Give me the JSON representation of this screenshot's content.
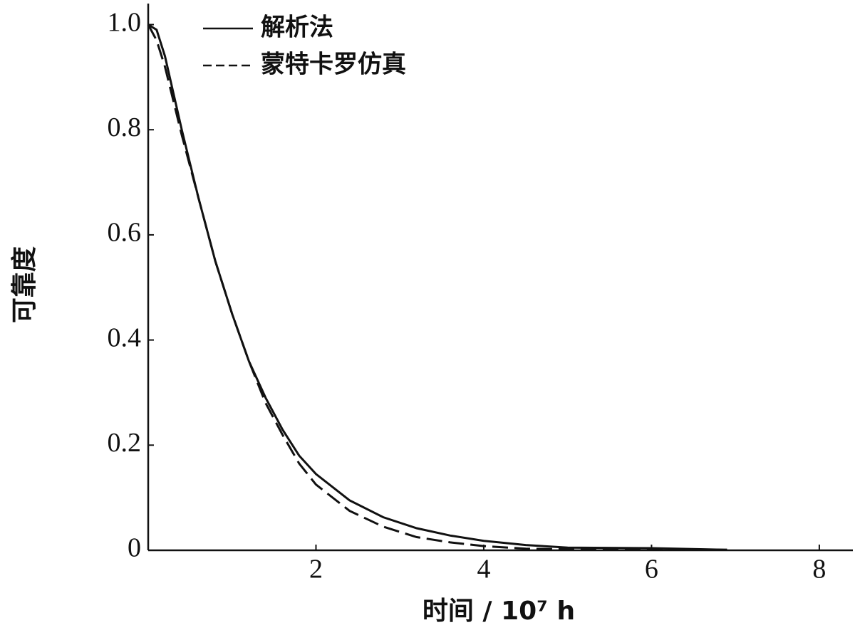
{
  "chart_data": {
    "type": "line",
    "xlabel": "时间 / 10⁷ h",
    "ylabel": "可靠度",
    "x": [
      0,
      0.1,
      0.2,
      0.4,
      0.6,
      0.8,
      1.0,
      1.2,
      1.4,
      1.6,
      1.8,
      2.0,
      2.4,
      2.8,
      3.2,
      3.6,
      4.0,
      4.5,
      5.0,
      6.0,
      6.9
    ],
    "series": [
      {
        "name": "解析法",
        "color": "#111111",
        "dash": false,
        "values": [
          1.0,
          0.99,
          0.94,
          0.8,
          0.67,
          0.55,
          0.45,
          0.36,
          0.29,
          0.23,
          0.18,
          0.145,
          0.095,
          0.063,
          0.042,
          0.028,
          0.018,
          0.01,
          0.005,
          0.004,
          0.001
        ]
      },
      {
        "name": "蒙特卡罗仿真",
        "color": "#111111",
        "dash": true,
        "values": [
          1.0,
          0.97,
          0.92,
          0.79,
          0.67,
          0.55,
          0.45,
          0.36,
          0.28,
          0.22,
          0.165,
          0.125,
          0.075,
          0.045,
          0.025,
          0.015,
          0.008,
          0.003,
          0.002,
          0.002,
          0.001
        ]
      }
    ],
    "xlim": [
      0,
      8.4
    ],
    "ylim": [
      0,
      1.04
    ],
    "xticks": [
      2,
      4,
      6,
      8
    ],
    "yticks": [
      0,
      0.2,
      0.4,
      0.6,
      0.8,
      {
        "value": 1,
        "label": "1.0"
      }
    ],
    "legend": "top-left",
    "grid": false
  }
}
